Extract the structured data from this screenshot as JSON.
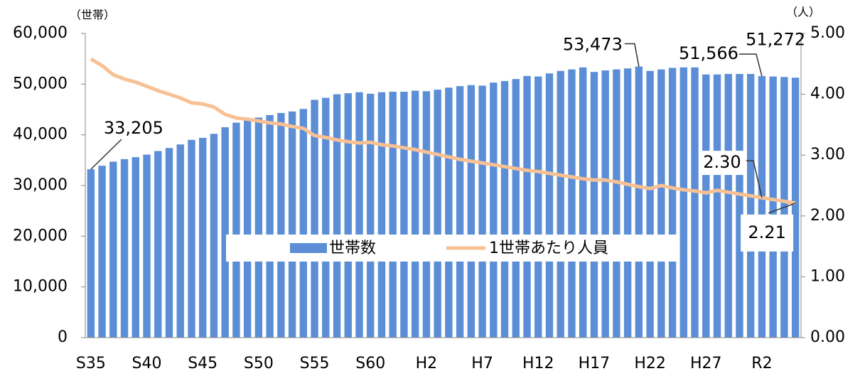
{
  "chart_data": {
    "type": "bar_line",
    "y_label": "（世帯）",
    "y2_label": "（人）",
    "categories": [
      "S35",
      null,
      null,
      null,
      null,
      "S40",
      null,
      null,
      null,
      null,
      "S45",
      null,
      null,
      null,
      null,
      "S50",
      null,
      null,
      null,
      null,
      "S55",
      null,
      null,
      null,
      null,
      "S60",
      null,
      null,
      null,
      null,
      "H2",
      null,
      null,
      null,
      null,
      "H7",
      null,
      null,
      null,
      null,
      "H12",
      null,
      null,
      null,
      null,
      "H17",
      null,
      null,
      null,
      null,
      "H22",
      null,
      null,
      null,
      null,
      "H27",
      null,
      null,
      null,
      null,
      "R2",
      null,
      null,
      null
    ],
    "series": [
      {
        "name": "世帯数",
        "type": "bar",
        "color": "#5b8ed6",
        "values": [
          33205,
          33900,
          34700,
          35200,
          35600,
          36100,
          36800,
          37400,
          38100,
          39000,
          39400,
          40200,
          41500,
          42400,
          42900,
          43400,
          43900,
          44300,
          44600,
          45100,
          46900,
          47300,
          48000,
          48200,
          48400,
          48100,
          48400,
          48500,
          48500,
          48700,
          48600,
          48900,
          49300,
          49600,
          49800,
          49700,
          50300,
          50600,
          51000,
          51600,
          51500,
          52100,
          52600,
          52900,
          53300,
          52400,
          52700,
          52900,
          53100,
          53473,
          52600,
          52900,
          53200,
          53300,
          53300,
          51900,
          51900,
          52000,
          52000,
          52000,
          51566,
          51500,
          51400,
          51272
        ],
        "value_labels": [
          "33,205",
          null,
          null,
          null,
          null,
          null,
          null,
          null,
          null,
          null,
          null,
          null,
          null,
          null,
          null,
          null,
          null,
          null,
          null,
          null,
          null,
          null,
          null,
          null,
          null,
          null,
          null,
          null,
          null,
          null,
          null,
          null,
          null,
          null,
          null,
          null,
          null,
          null,
          null,
          null,
          null,
          null,
          null,
          null,
          null,
          null,
          null,
          null,
          null,
          "53,473",
          null,
          null,
          null,
          null,
          null,
          null,
          null,
          null,
          null,
          null,
          "51,566",
          null,
          null,
          "51,272"
        ]
      },
      {
        "name": "1世帯あたり人員",
        "type": "line",
        "axis": "y2",
        "color": "#f8c193",
        "values": [
          4.58,
          4.47,
          4.32,
          4.25,
          4.2,
          4.13,
          4.06,
          4.0,
          3.94,
          3.86,
          3.84,
          3.79,
          3.67,
          3.61,
          3.59,
          3.56,
          3.53,
          3.51,
          3.47,
          3.44,
          3.32,
          3.29,
          3.25,
          3.22,
          3.2,
          3.21,
          3.17,
          3.15,
          3.12,
          3.09,
          3.05,
          3.01,
          2.97,
          2.93,
          2.9,
          2.87,
          2.84,
          2.81,
          2.78,
          2.75,
          2.73,
          2.7,
          2.67,
          2.64,
          2.61,
          2.59,
          2.59,
          2.56,
          2.52,
          2.48,
          2.45,
          2.5,
          2.46,
          2.43,
          2.41,
          2.38,
          2.42,
          2.39,
          2.36,
          2.33,
          2.3,
          2.27,
          2.24,
          2.21
        ],
        "value_labels": [
          null,
          null,
          null,
          null,
          null,
          null,
          null,
          null,
          null,
          null,
          null,
          null,
          null,
          null,
          null,
          null,
          null,
          null,
          null,
          null,
          null,
          null,
          null,
          null,
          null,
          null,
          null,
          null,
          null,
          null,
          null,
          null,
          null,
          null,
          null,
          null,
          null,
          null,
          null,
          null,
          null,
          null,
          null,
          null,
          null,
          null,
          null,
          null,
          null,
          null,
          null,
          null,
          null,
          null,
          null,
          null,
          null,
          null,
          null,
          null,
          "2.30",
          null,
          null,
          "2.21"
        ]
      }
    ],
    "ylim": [
      0,
      60000
    ],
    "yticks": [
      0,
      {
        "value": 10000,
        "label": "10,000"
      },
      {
        "value": 20000,
        "label": "20,000"
      },
      {
        "value": 30000,
        "label": "30,000"
      },
      {
        "value": 40000,
        "label": "40,000"
      },
      {
        "value": 50000,
        "label": "50,000"
      },
      {
        "value": 60000,
        "label": "60,000"
      }
    ],
    "y2lim": [
      0,
      5
    ],
    "y2ticks": [
      {
        "value": 0,
        "label": "0.00"
      },
      {
        "value": 1,
        "label": "1.00"
      },
      {
        "value": 2,
        "label": "2.00"
      },
      {
        "value": 3,
        "label": "3.00"
      },
      {
        "value": 4,
        "label": "4.00"
      },
      {
        "value": 5,
        "label": "5.00"
      }
    ],
    "legend": "center"
  }
}
